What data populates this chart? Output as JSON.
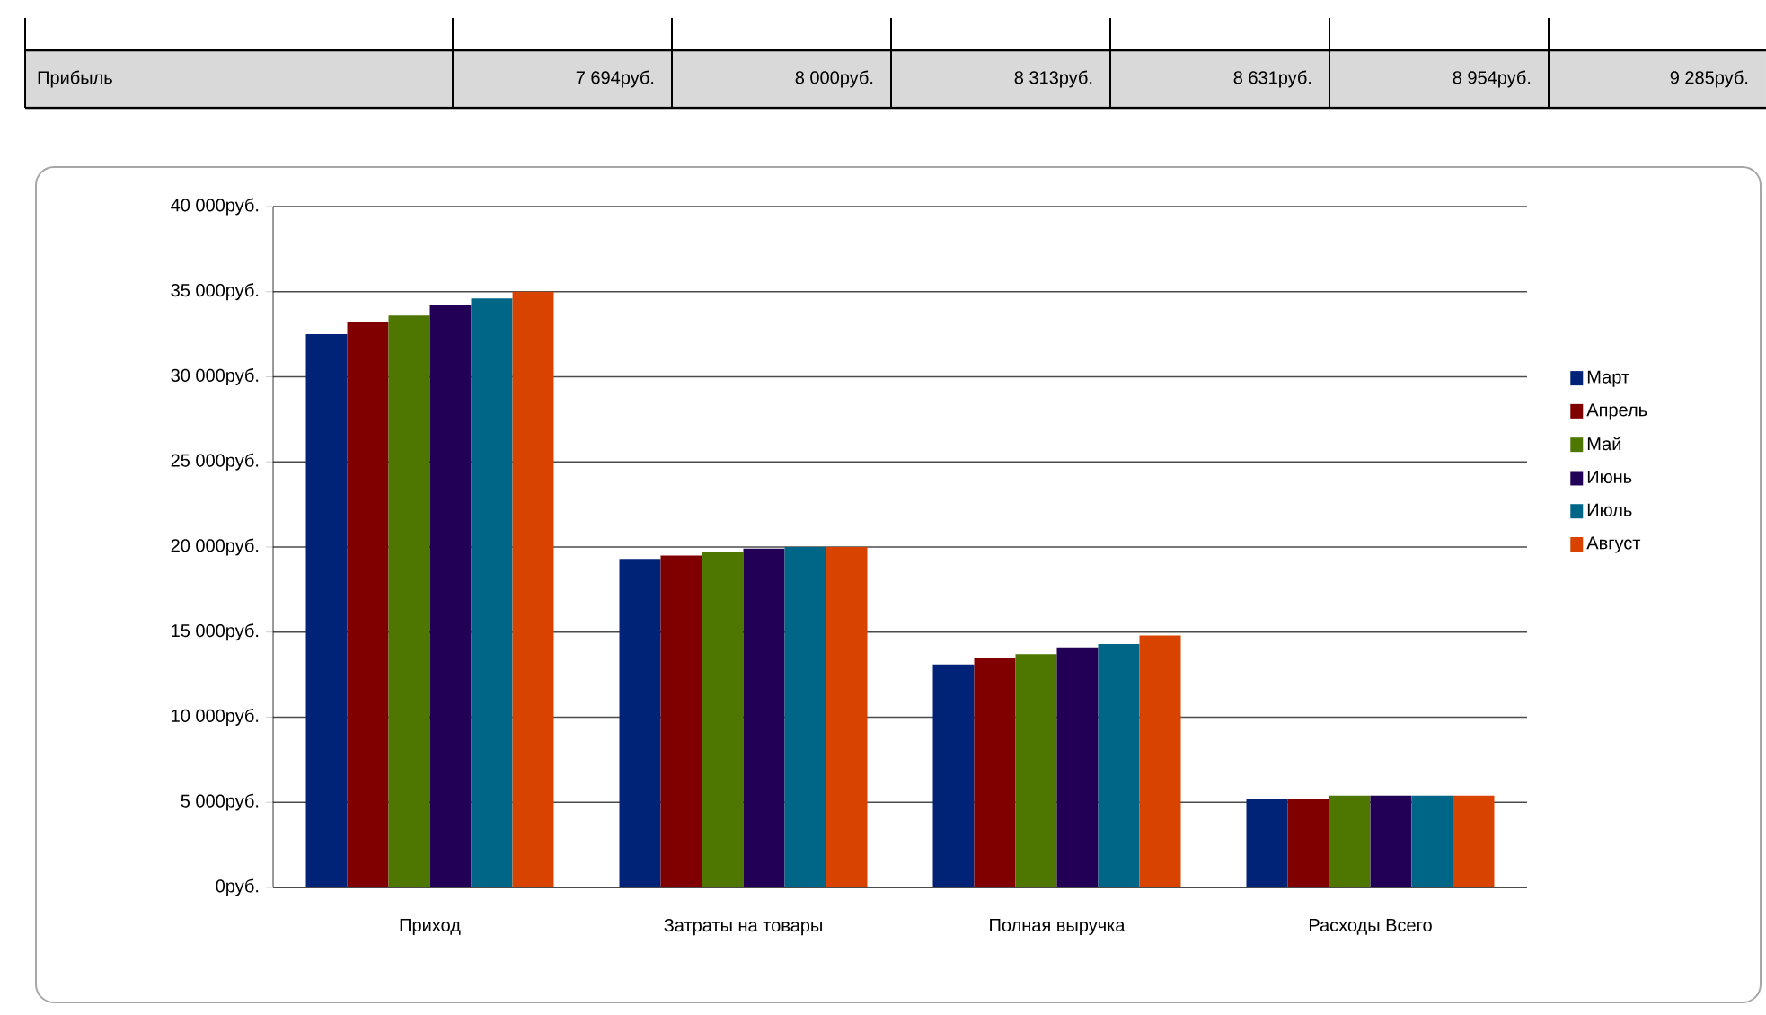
{
  "chart_data": {
    "type": "bar",
    "categories": [
      "Приход",
      "Затраты на товары",
      "Полная выручка",
      "Расходы Всего"
    ],
    "series": [
      {
        "name": "Март",
        "color": "#002277",
        "values": [
          32500,
          19300,
          13100,
          5200
        ]
      },
      {
        "name": "Апрель",
        "color": "#800000",
        "values": [
          33200,
          19500,
          13500,
          5200
        ]
      },
      {
        "name": "Май",
        "color": "#4d7700",
        "values": [
          33600,
          19700,
          13700,
          5400
        ]
      },
      {
        "name": "Июнь",
        "color": "#220055",
        "values": [
          34200,
          19900,
          14100,
          5400
        ]
      },
      {
        "name": "Июль",
        "color": "#006688",
        "values": [
          34600,
          20000,
          14300,
          5400
        ]
      },
      {
        "name": "Август",
        "color": "#d84400",
        "values": [
          35000,
          20000,
          14800,
          5400
        ]
      }
    ],
    "ylim": [
      0,
      40000
    ],
    "yticks": [
      {
        "value": 0,
        "label": "0руб."
      },
      {
        "value": 5000,
        "label": "5 000руб."
      },
      {
        "value": 10000,
        "label": "10 000руб."
      },
      {
        "value": 15000,
        "label": "15 000руб."
      },
      {
        "value": 20000,
        "label": "20 000руб."
      },
      {
        "value": 25000,
        "label": "25 000руб."
      },
      {
        "value": 30000,
        "label": "30 000руб."
      },
      {
        "value": 35000,
        "label": "35 000руб."
      },
      {
        "value": 40000,
        "label": "40 000руб."
      }
    ],
    "grid": "y",
    "legend": "right",
    "annotations": [
      "Прибыль",
      "7 694руб.",
      "8 000руб.",
      "8 313руб.",
      "8 631руб.",
      "8 954руб.",
      "9 285руб."
    ]
  }
}
